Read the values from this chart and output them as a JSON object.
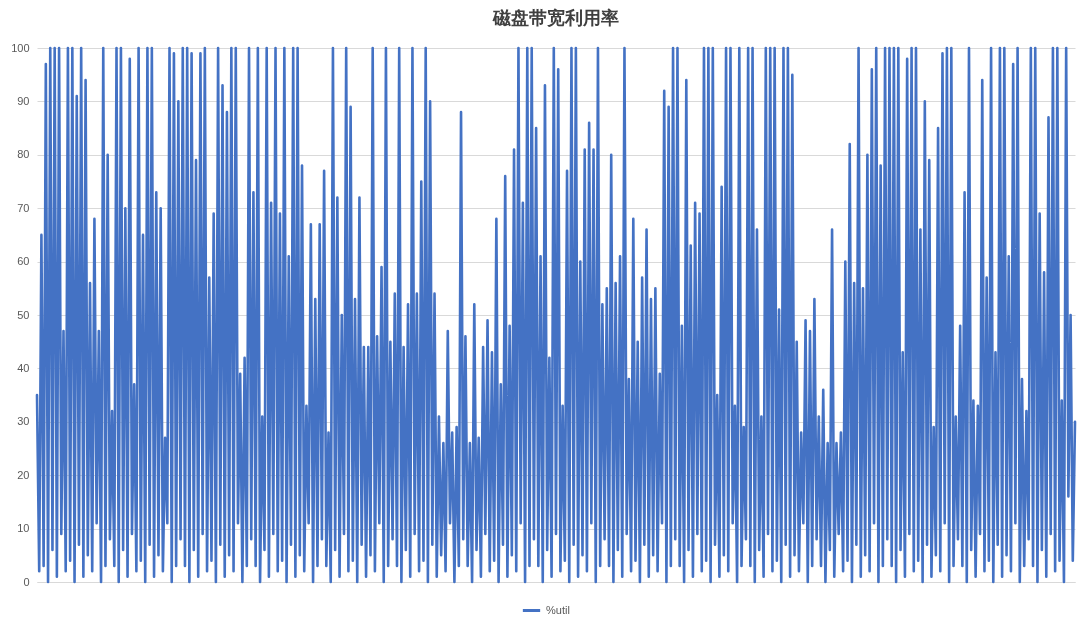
{
  "chart_data": {
    "type": "line",
    "title": "磁盘带宽利用率",
    "categories": [
      null,
      null,
      null,
      null,
      null,
      null,
      null,
      null,
      null,
      null,
      null,
      null,
      null,
      null,
      null,
      null,
      null,
      null,
      null,
      null,
      null,
      null,
      null,
      null,
      null,
      null,
      null,
      null,
      null,
      null,
      null,
      null,
      null,
      null,
      null,
      null,
      null,
      null,
      null,
      null,
      null,
      null,
      null,
      null,
      null,
      null,
      null,
      null,
      null,
      null,
      null,
      null,
      null,
      null,
      null,
      null,
      null,
      null,
      null,
      null,
      null,
      null,
      null,
      null,
      null,
      null,
      null,
      null,
      null,
      null,
      null,
      null,
      null,
      null,
      null,
      null,
      null,
      null,
      null,
      null,
      null,
      null,
      null,
      null,
      null,
      null,
      null,
      null,
      null,
      null,
      null,
      null,
      null,
      null,
      null,
      null,
      null,
      null,
      null,
      null,
      null,
      null,
      null,
      null,
      null,
      null,
      null,
      null,
      null,
      null,
      null,
      null,
      null,
      null,
      null,
      null,
      null,
      null,
      null,
      null,
      null,
      null,
      null,
      null,
      null,
      null,
      null,
      null,
      null,
      null,
      null,
      null,
      null,
      null,
      null,
      null,
      null,
      null,
      null,
      null,
      null,
      null,
      null,
      null,
      null,
      null,
      null,
      null,
      null,
      null,
      null,
      null,
      null,
      null,
      null,
      null,
      null,
      null,
      null,
      null,
      null,
      null,
      null,
      null,
      null,
      null,
      null,
      null,
      null,
      null,
      null,
      null,
      null,
      null,
      null,
      null,
      null,
      null,
      null,
      null,
      null,
      null,
      null,
      null,
      null,
      null,
      null,
      null,
      null,
      null,
      null,
      null,
      null,
      null,
      null,
      null,
      null,
      null,
      null,
      null,
      null,
      null,
      null,
      null,
      null,
      null,
      null,
      null,
      null,
      null,
      null,
      null,
      null,
      null,
      null,
      null,
      null,
      null,
      null,
      null,
      null,
      null,
      null,
      null,
      null,
      null,
      null,
      null,
      null,
      null,
      null,
      null,
      null,
      null,
      null,
      null,
      null,
      null,
      null,
      null,
      null,
      null,
      null,
      null,
      null,
      null,
      null,
      null,
      null,
      null,
      null,
      null,
      null,
      null,
      null,
      null,
      null,
      null,
      null,
      null,
      null,
      null,
      null,
      null,
      null,
      null,
      null,
      null,
      null,
      null,
      null,
      null,
      null,
      null,
      null,
      null,
      null,
      null,
      null,
      null,
      null,
      null,
      null,
      null,
      null,
      null,
      null,
      null,
      null,
      null,
      null,
      null,
      null,
      null,
      null,
      null,
      null,
      null,
      null,
      null,
      null,
      null,
      null,
      null,
      null,
      null,
      null,
      null,
      null,
      null,
      null,
      null,
      null,
      null,
      null,
      null,
      null,
      null,
      null,
      null,
      null,
      null,
      null,
      null,
      null,
      null,
      null,
      null,
      null,
      null,
      null,
      null,
      null,
      null,
      null,
      null,
      null,
      null,
      null,
      null,
      null,
      null,
      null,
      null,
      null,
      null,
      null,
      null,
      null,
      null,
      null,
      null,
      null,
      null,
      null,
      null,
      null,
      null,
      null,
      null,
      null,
      null,
      null,
      null,
      null,
      null,
      null,
      null,
      null,
      null,
      null,
      null,
      null,
      null,
      null,
      null,
      null,
      null,
      null,
      null,
      null,
      null,
      null,
      null,
      null,
      null,
      null,
      null,
      null,
      null,
      null,
      null,
      null,
      null,
      null,
      null,
      null,
      null,
      null,
      null,
      null,
      null,
      null,
      null,
      null,
      null,
      null,
      null,
      null,
      null,
      null,
      null,
      null,
      null,
      null,
      null,
      null,
      null,
      null,
      null,
      null,
      null,
      null,
      null,
      null,
      null,
      null,
      null,
      null,
      null,
      null,
      null,
      null,
      null,
      null,
      null,
      null,
      null,
      null,
      null,
      null,
      null,
      null,
      null,
      null,
      null,
      null,
      null,
      null,
      null,
      null,
      null,
      null,
      null,
      null,
      null,
      null,
      null,
      null,
      null,
      null,
      null,
      null,
      null,
      null,
      null,
      null,
      null,
      null,
      null,
      null
    ],
    "series": [
      {
        "name": "%util",
        "color": "#4472c4",
        "values": [
          35,
          2,
          65,
          3,
          97,
          0,
          100,
          6,
          100,
          1,
          100,
          9,
          47,
          2,
          100,
          4,
          100,
          0,
          91,
          7,
          100,
          1,
          94,
          5,
          56,
          2,
          68,
          11,
          47,
          0,
          100,
          3,
          80,
          8,
          32,
          3,
          100,
          0,
          100,
          6,
          70,
          1,
          98,
          9,
          37,
          2,
          100,
          4,
          65,
          0,
          100,
          7,
          100,
          1,
          73,
          5,
          70,
          2,
          27,
          11,
          100,
          0,
          99,
          3,
          90,
          8,
          100,
          3,
          100,
          0,
          99,
          6,
          79,
          1,
          99,
          9,
          100,
          2,
          57,
          4,
          69,
          0,
          100,
          7,
          93,
          1,
          88,
          5,
          100,
          2,
          100,
          11,
          39,
          0,
          42,
          3,
          100,
          8,
          73,
          3,
          100,
          0,
          31,
          6,
          100,
          1,
          71,
          9,
          100,
          2,
          69,
          4,
          100,
          0,
          61,
          7,
          100,
          1,
          100,
          5,
          78,
          2,
          33,
          11,
          67,
          0,
          53,
          3,
          67,
          8,
          77,
          3,
          28,
          0,
          100,
          6,
          72,
          1,
          50,
          9,
          100,
          2,
          89,
          4,
          53,
          0,
          72,
          7,
          44,
          1,
          44,
          5,
          100,
          2,
          46,
          11,
          59,
          0,
          100,
          3,
          45,
          8,
          54,
          3,
          100,
          0,
          44,
          6,
          52,
          1,
          100,
          9,
          54,
          2,
          75,
          4,
          100,
          0,
          90,
          7,
          54,
          1,
          31,
          5,
          26,
          2,
          47,
          11,
          28,
          0,
          29,
          3,
          88,
          8,
          46,
          3,
          26,
          0,
          52,
          6,
          27,
          1,
          44,
          9,
          49,
          2,
          43,
          4,
          68,
          0,
          37,
          7,
          76,
          1,
          48,
          5,
          81,
          2,
          100,
          11,
          71,
          0,
          100,
          3,
          100,
          8,
          85,
          3,
          61,
          0,
          93,
          6,
          42,
          1,
          100,
          9,
          96,
          2,
          33,
          4,
          77,
          0,
          100,
          7,
          100,
          1,
          60,
          5,
          81,
          2,
          86,
          11,
          81,
          0,
          100,
          3,
          52,
          8,
          55,
          3,
          80,
          0,
          56,
          6,
          61,
          1,
          100,
          9,
          38,
          2,
          68,
          4,
          45,
          0,
          57,
          7,
          66,
          1,
          53,
          5,
          55,
          2,
          39,
          11,
          92,
          0,
          89,
          3,
          100,
          8,
          100,
          3,
          48,
          0,
          94,
          6,
          63,
          1,
          71,
          9,
          69,
          2,
          100,
          4,
          100,
          0,
          100,
          7,
          35,
          1,
          74,
          5,
          100,
          2,
          100,
          11,
          33,
          0,
          100,
          3,
          29,
          8,
          100,
          3,
          100,
          0,
          66,
          6,
          31,
          1,
          100,
          9,
          100,
          2,
          100,
          4,
          51,
          0,
          100,
          7,
          100,
          1,
          95,
          5,
          45,
          2,
          28,
          11,
          49,
          0,
          47,
          3,
          53,
          8,
          31,
          3,
          36,
          0,
          26,
          6,
          66,
          1,
          26,
          9,
          28,
          2,
          60,
          4,
          82,
          0,
          56,
          7,
          100,
          1,
          55,
          5,
          80,
          2,
          96,
          11,
          100,
          0,
          78,
          3,
          100,
          8,
          100,
          3,
          100,
          0,
          100,
          6,
          43,
          1,
          98,
          9,
          100,
          2,
          100,
          4,
          66,
          0,
          90,
          7,
          79,
          1,
          29,
          5,
          85,
          2,
          99,
          11,
          100,
          0,
          100,
          3,
          31,
          8,
          48,
          3,
          73,
          0,
          100,
          6,
          34,
          1,
          33,
          9,
          94,
          2,
          57,
          4,
          100,
          0,
          43,
          7,
          100,
          1,
          100,
          5,
          61,
          2,
          97,
          11,
          100,
          0,
          38,
          3,
          32,
          8,
          100,
          3,
          100,
          0,
          69,
          6,
          58,
          1,
          87,
          9,
          100,
          2,
          100,
          4,
          34,
          0,
          100,
          16,
          50,
          4,
          30
        ]
      }
    ],
    "ylim": [
      0,
      100
    ],
    "yticks": [
      0,
      10,
      20,
      30,
      40,
      50,
      60,
      70,
      80,
      90,
      100
    ],
    "grid": "y",
    "legend": "bottom"
  }
}
